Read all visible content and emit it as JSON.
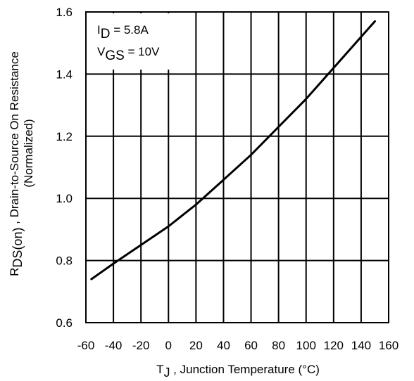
{
  "chart_data": {
    "type": "line",
    "title": "",
    "xlabel": {
      "main": "T",
      "sub": "J",
      "rest": " , Junction Temperature (°C)"
    },
    "ylabel": {
      "main": "R",
      "sub": "DS(on)",
      "rest": " , Drain-to-Source On Resistance",
      "line2": "(Normalized)"
    },
    "xlim": [
      -60,
      160
    ],
    "ylim": [
      0.6,
      1.6
    ],
    "xticks": [
      -60,
      -40,
      -20,
      0,
      20,
      40,
      60,
      80,
      100,
      120,
      140,
      160
    ],
    "yticks": [
      0.6,
      0.8,
      1.0,
      1.2,
      1.4,
      1.6
    ],
    "xtick_labels": [
      "-60",
      "-40",
      "-20",
      "0",
      "20",
      "40",
      "60",
      "80",
      "100",
      "120",
      "140",
      "160"
    ],
    "ytick_labels": [
      "0.6",
      "0.8",
      "1.0",
      "1.2",
      "1.4",
      "1.6"
    ],
    "grid": true,
    "annotations": [
      {
        "main": "I",
        "sub": "D",
        "rest": " = 5.8A"
      },
      {
        "main": "V",
        "sub": "GS",
        "rest": " = 10V"
      }
    ],
    "series": [
      {
        "x": [
          -56,
          -40,
          -20,
          0,
          20,
          40,
          60,
          80,
          100,
          120,
          140,
          150
        ],
        "y": [
          0.74,
          0.79,
          0.85,
          0.91,
          0.98,
          1.06,
          1.14,
          1.23,
          1.32,
          1.42,
          1.52,
          1.57
        ]
      }
    ],
    "colors": {
      "line": "#000000",
      "grid": "#000000",
      "background": "#ffffff"
    }
  }
}
